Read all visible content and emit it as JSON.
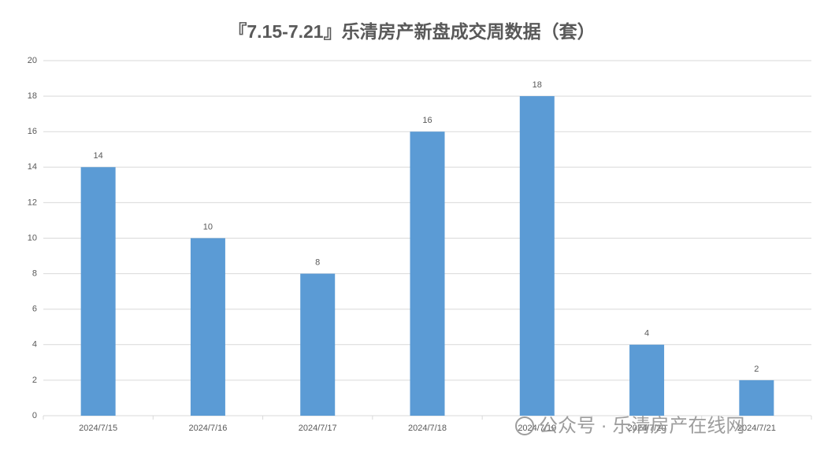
{
  "chart_data": {
    "type": "bar",
    "title": "『7.15-7.21』乐清房产新盘成交周数据（套）",
    "categories": [
      "2024/7/15",
      "2024/7/16",
      "2024/7/17",
      "2024/7/18",
      "2024/7/19",
      "2024/7/20",
      "2024/7/21"
    ],
    "values": [
      14,
      10,
      8,
      16,
      18,
      4,
      2
    ],
    "color": "#5b9bd5",
    "ylim": [
      0,
      20
    ],
    "yticks": [
      0,
      2,
      4,
      6,
      8,
      10,
      12,
      14,
      16,
      18,
      20
    ],
    "grid": true,
    "watermark": "公众号 · 乐清房产在线网"
  }
}
